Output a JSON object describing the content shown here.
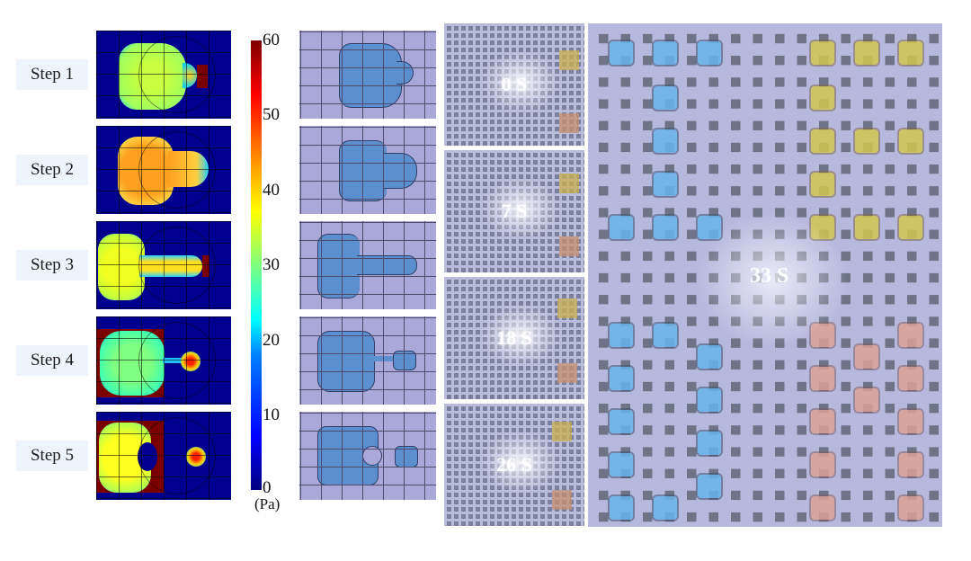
{
  "steps": [
    "Step 1",
    "Step 2",
    "Step 3",
    "Step 4",
    "Step 5"
  ],
  "colorbar": {
    "ticks": [
      "60",
      "50",
      "40",
      "30",
      "20",
      "10",
      "0"
    ],
    "unit": "(Pa)",
    "colormap": "jet"
  },
  "chip_times": [
    "0 S",
    "7 S",
    "18 S",
    "26 S"
  ],
  "big_time": "33 S",
  "colors": {
    "droplet_blue": "#68b4eb",
    "droplet_yellow": "#d2c450",
    "droplet_pink": "#dca096",
    "pad_grid": "#b7b8de"
  }
}
